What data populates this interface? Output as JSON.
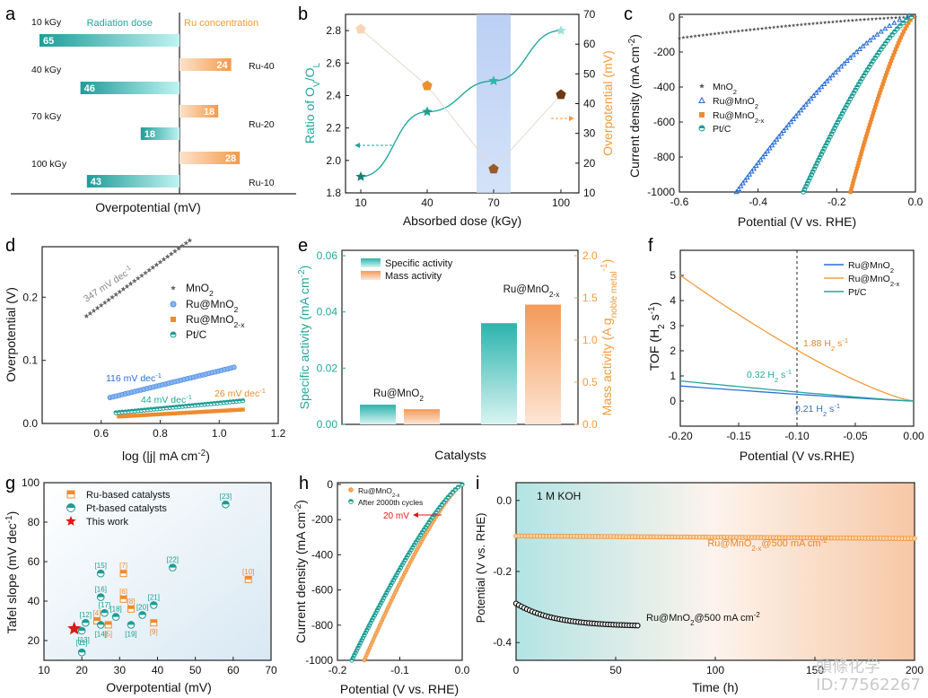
{
  "colors": {
    "teal": "#21a89c",
    "orange": "#f39b3c",
    "blue": "#2c6fd6",
    "star": "#1aa08e",
    "gray": "#666666",
    "brown": "#8a4b1f",
    "pentLight": "#f7d8b8",
    "red": "#e01818"
  },
  "watermark": {
    "line1": "頭條化学",
    "line2": "ID:77562267"
  },
  "chart_data": [
    {
      "panel": "a",
      "type": "bar",
      "orientation": "horizontal",
      "xlabel": "Overpotential (mV)",
      "legend_left": "Radiation dose",
      "legend_right": "Ru concentration",
      "dose_groups": [
        "10 kGy",
        "40 kGy",
        "70 kGy",
        "100 kGy"
      ],
      "dose_values": [
        65,
        46,
        18,
        43
      ],
      "ru_groups": [
        "Ru-40",
        "Ru-20",
        "Ru-10"
      ],
      "ru_values": [
        24,
        18,
        28
      ]
    },
    {
      "panel": "b",
      "type": "line",
      "xlabel": "Absorbed dose (kGy)",
      "ylabel": "Ratio of OV/OL",
      "ylabel2": "Overpotential (mV)",
      "x": [
        10,
        40,
        70,
        100
      ],
      "ratio": [
        1.9,
        2.3,
        2.49,
        2.8
      ],
      "overpotential": [
        65,
        46,
        18,
        43
      ],
      "ylim": [
        1.8,
        2.9
      ],
      "ylim2": [
        10,
        70
      ],
      "xticks": [
        "10",
        "40",
        "70",
        "100"
      ],
      "yticks": [
        "1.8",
        "2.0",
        "2.2",
        "2.4",
        "2.6",
        "2.8"
      ],
      "yticks2": [
        "10",
        "20",
        "30",
        "40",
        "50",
        "60",
        "70"
      ]
    },
    {
      "panel": "c",
      "type": "line",
      "xlabel": "Potential (V vs. RHE)",
      "ylabel": "Current density (mA cm-2)",
      "xlim": [
        -0.6,
        0.0
      ],
      "ylim": [
        -1000,
        0
      ],
      "xticks": [
        "-0.6",
        "-0.4",
        "-0.2",
        "0.0"
      ],
      "yticks": [
        "0",
        "-200",
        "-400",
        "-600",
        "-800",
        "-1000"
      ],
      "series": [
        {
          "name": "MnO2",
          "onset": 0,
          "at_xmin": -120
        },
        {
          "name": "Ru@MnO2",
          "onset": -0.02,
          "x_at_1000": -0.455
        },
        {
          "name": "Ru@MnO2-x",
          "onset": -0.005,
          "x_at_1000": -0.165
        },
        {
          "name": "Pt/C",
          "onset": -0.01,
          "x_at_1000": -0.285
        }
      ]
    },
    {
      "panel": "d",
      "type": "scatter",
      "xlabel": "log (|j| mA cm-2)",
      "ylabel": "Overpotential (V)",
      "xlim": [
        0.4,
        1.2
      ],
      "ylim": [
        0,
        0.28
      ],
      "xticks": [
        "0.6",
        "0.8",
        "1.0",
        "1.2"
      ],
      "yticks": [
        "0.0",
        "0.1",
        "0.2"
      ],
      "series": [
        {
          "name": "MnO2",
          "slope_label": "347 mV dec-1",
          "x0": 0.55,
          "x1": 0.9,
          "y0": 0.17,
          "y1": 0.29
        },
        {
          "name": "Ru@MnO2",
          "slope_label": "116 mV dec-1",
          "x0": 0.63,
          "x1": 1.05,
          "y0": 0.041,
          "y1": 0.089
        },
        {
          "name": "Ru@MnO2-x",
          "slope_label": "26 mV dec-1",
          "x0": 0.66,
          "x1": 1.08,
          "y0": 0.011,
          "y1": 0.022
        },
        {
          "name": "Pt/C",
          "slope_label": "44 mV dec-1",
          "x0": 0.65,
          "x1": 1.08,
          "y0": 0.017,
          "y1": 0.036
        }
      ]
    },
    {
      "panel": "e",
      "type": "bar",
      "xlabel": "Catalysts",
      "ylabel": "Specific activity (mA cm-2)",
      "ylabel2": "Mass activity (A gnoble metal-1)",
      "categories": [
        "Ru@MnO2",
        "Ru@MnO2-x"
      ],
      "specific_activity": [
        0.007,
        0.036
      ],
      "mass_activity": [
        0.18,
        1.42
      ],
      "ylim": [
        0,
        0.06
      ],
      "ylim2": [
        0,
        2.0
      ],
      "yticks": [
        "0.00",
        "0.02",
        "0.04",
        "0.06"
      ],
      "yticks2": [
        "0.0",
        "0.5",
        "1.0",
        "1.5",
        "2.0"
      ],
      "legend": [
        "Specific activity",
        "Mass activity"
      ]
    },
    {
      "panel": "f",
      "type": "line",
      "xlabel": "Potential (V vs.RHE)",
      "ylabel": "TOF (H2 s-1)",
      "xlim": [
        -0.2,
        0.0
      ],
      "ylim": [
        -1,
        6
      ],
      "xticks": [
        "-0.20",
        "-0.15",
        "-0.10",
        "-0.05",
        "0.00"
      ],
      "yticks": [
        "0",
        "1",
        "2",
        "3",
        "4",
        "5"
      ],
      "series": [
        {
          "name": "Ru@MnO2",
          "at_xmin": 0.6,
          "label": "0.21 H2 s-1"
        },
        {
          "name": "Ru@MnO2-x",
          "at_xmin": 5.0,
          "label": "1.88 H2 s-1"
        },
        {
          "name": "Pt/C",
          "at_xmin": 0.8,
          "label": "0.32 H2 s-1"
        }
      ],
      "marker_x": -0.1
    },
    {
      "panel": "g",
      "type": "scatter",
      "xlabel": "Overpotential (mV)",
      "ylabel": "Tafel slope (mV dec-1)",
      "xlim": [
        10,
        70
      ],
      "ylim": [
        10,
        100
      ],
      "xticks": [
        "10",
        "20",
        "30",
        "40",
        "50",
        "60",
        "70"
      ],
      "yticks": [
        "20",
        "40",
        "60",
        "80",
        "100"
      ],
      "legend": [
        "Ru-based catalysts",
        "Pt-based catalysts",
        "This work"
      ],
      "ru_points": [
        {
          "x": 24,
          "y": 30,
          "ref": "[4]"
        },
        {
          "x": 27,
          "y": 28,
          "ref": "[5]"
        },
        {
          "x": 31,
          "y": 41,
          "ref": "[6]"
        },
        {
          "x": 31,
          "y": 54,
          "ref": "[7]"
        },
        {
          "x": 33,
          "y": 36,
          "ref": "[8]"
        },
        {
          "x": 39,
          "y": 29,
          "ref": "[9]"
        },
        {
          "x": 64,
          "y": 51,
          "ref": "[10]"
        }
      ],
      "pt_points": [
        {
          "x": 21,
          "y": 29,
          "ref": "[12]"
        },
        {
          "x": 20,
          "y": 25,
          "ref": "[13]"
        },
        {
          "x": 25,
          "y": 28,
          "ref": "[14]"
        },
        {
          "x": 25,
          "y": 54,
          "ref": "[15]"
        },
        {
          "x": 25,
          "y": 42,
          "ref": "[16]"
        },
        {
          "x": 26,
          "y": 34,
          "ref": "[17]"
        },
        {
          "x": 29,
          "y": 32,
          "ref": "[18]"
        },
        {
          "x": 33,
          "y": 28,
          "ref": "[19]"
        },
        {
          "x": 36,
          "y": 33,
          "ref": "[20]"
        },
        {
          "x": 39,
          "y": 38,
          "ref": "[21]"
        },
        {
          "x": 44,
          "y": 57,
          "ref": "[22]"
        },
        {
          "x": 58,
          "y": 89,
          "ref": "[23]"
        },
        {
          "x": 20,
          "y": 14,
          "ref": "[11]"
        }
      ],
      "this_work": {
        "x": 18,
        "y": 26
      }
    },
    {
      "panel": "h",
      "type": "line",
      "xlabel": "Potential (V vs. RHE)",
      "ylabel": "Current density (mA cm-2)",
      "xlim": [
        -0.2,
        0.0
      ],
      "ylim": [
        -1000,
        0
      ],
      "xticks": [
        "-0.2",
        "-0.1",
        "0.0"
      ],
      "yticks": [
        "0",
        "-200",
        "-400",
        "-600",
        "-800",
        "-1000"
      ],
      "series": [
        {
          "name": "Ru@MnO2-x",
          "x_at_1000": -0.157
        },
        {
          "name": "After 2000th cycles",
          "x_at_1000": -0.177
        }
      ],
      "annotation": "20 mV"
    },
    {
      "panel": "i",
      "type": "line",
      "xlabel": "Time (h)",
      "ylabel": "Potential (V vs. RHE)",
      "note": "1 M KOH",
      "xlim": [
        0,
        200
      ],
      "ylim": [
        -0.45,
        0.05
      ],
      "xticks": [
        "0",
        "50",
        "100",
        "150",
        "200"
      ],
      "yticks": [
        "0.0",
        "-0.2",
        "-0.4"
      ],
      "series": [
        {
          "name": "Ru@MnO2-x@500 mA cm-2",
          "t_end": 200,
          "v_start": -0.1,
          "v_end": -0.107
        },
        {
          "name": "Ru@MnO2@500 mA cm-2",
          "t_end": 61,
          "v_start": -0.29,
          "v_end": -0.352
        }
      ]
    }
  ]
}
